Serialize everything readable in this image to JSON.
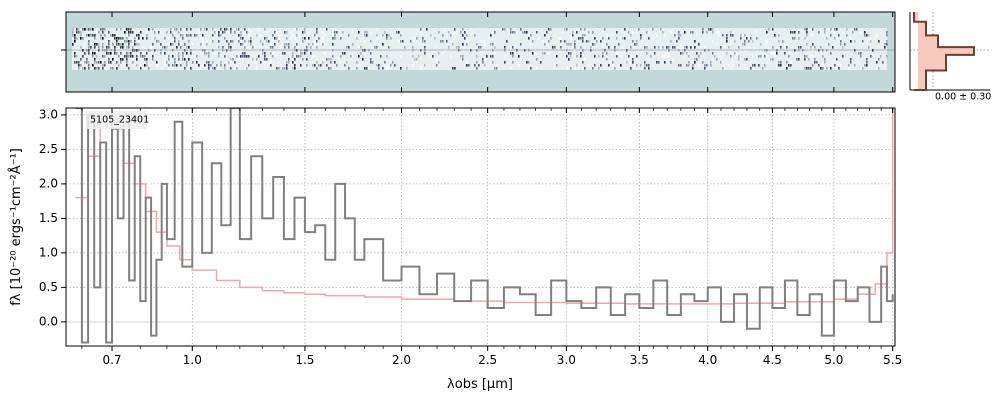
{
  "chart_data": [
    {
      "name": "2d-spectrum",
      "type": "heatmap",
      "colormap": [
        "#c3d9d9",
        "#ffffff",
        "#1b2b4a",
        "#000000"
      ]
    },
    {
      "name": "spatial-profile",
      "type": "line",
      "label": "0.00 ± 0.30",
      "x": [
        -0.05,
        0.1,
        0.25,
        0.7,
        0.35,
        0.1,
        -0.05
      ],
      "y_rows": [
        0,
        5,
        12,
        18,
        22,
        30,
        40
      ],
      "colors": {
        "profile": "#6b3e2e",
        "fill": "#f7c8bc"
      }
    },
    {
      "name": "1d-spectrum",
      "type": "line",
      "title_label": "5105_23401",
      "xlabel": "λobs [μm]",
      "ylabel": "fλ [10⁻²⁰ ergs⁻¹cm⁻²Å⁻¹]",
      "xscale": "power",
      "xlim": [
        0.55,
        5.52
      ],
      "ylim": [
        -0.35,
        3.1
      ],
      "xticks": [
        "0.7",
        "1.0",
        "1.5",
        "2.0",
        "2.5",
        "3.0",
        "3.5",
        "4.0",
        "4.5",
        "5.0",
        "5.5"
      ],
      "xtick_values": [
        0.7,
        1.0,
        1.5,
        2.0,
        2.5,
        3.0,
        3.5,
        4.0,
        4.5,
        5.0,
        5.5
      ],
      "yticks": [
        "0.0",
        "0.5",
        "1.0",
        "1.5",
        "2.0",
        "2.5",
        "3.0"
      ],
      "ytick_values": [
        0.0,
        0.5,
        1.0,
        1.5,
        2.0,
        2.5,
        3.0
      ],
      "grid": true,
      "colors": {
        "flux": "#808080",
        "error": "#f4a6a6",
        "zero": "#d8d8d8"
      },
      "series": [
        {
          "role": "flux",
          "x": [
            0.58,
            0.6,
            0.62,
            0.64,
            0.66,
            0.68,
            0.7,
            0.72,
            0.74,
            0.76,
            0.78,
            0.8,
            0.82,
            0.84,
            0.86,
            0.88,
            0.9,
            0.93,
            0.96,
            1.0,
            1.04,
            1.08,
            1.12,
            1.16,
            1.2,
            1.25,
            1.3,
            1.35,
            1.4,
            1.45,
            1.5,
            1.55,
            1.6,
            1.65,
            1.7,
            1.75,
            1.8,
            1.9,
            2.0,
            2.1,
            2.2,
            2.3,
            2.4,
            2.5,
            2.6,
            2.7,
            2.8,
            2.9,
            3.0,
            3.1,
            3.2,
            3.3,
            3.4,
            3.5,
            3.6,
            3.7,
            3.8,
            3.9,
            4.0,
            4.1,
            4.2,
            4.3,
            4.4,
            4.5,
            4.6,
            4.7,
            4.8,
            4.9,
            5.0,
            5.1,
            5.2,
            5.3,
            5.4,
            5.45,
            5.5
          ],
          "y": [
            3.1,
            -0.3,
            3.0,
            0.5,
            2.6,
            -0.3,
            2.8,
            1.5,
            3.0,
            0.6,
            2.4,
            0.3,
            1.8,
            -0.2,
            0.9,
            2.0,
            1.2,
            2.9,
            0.8,
            2.6,
            1.0,
            2.3,
            1.4,
            3.1,
            1.2,
            2.4,
            1.5,
            2.1,
            1.2,
            1.8,
            1.3,
            1.4,
            0.9,
            2.0,
            1.5,
            0.9,
            1.2,
            0.6,
            0.8,
            0.4,
            0.7,
            0.3,
            0.6,
            0.2,
            0.5,
            0.4,
            0.1,
            0.6,
            0.3,
            0.2,
            0.5,
            0.1,
            0.4,
            0.2,
            0.6,
            0.1,
            0.4,
            0.3,
            0.5,
            0.0,
            0.4,
            -0.1,
            0.5,
            0.2,
            0.6,
            0.1,
            0.4,
            -0.2,
            0.6,
            0.3,
            0.5,
            0.0,
            0.8,
            0.3,
            0.4
          ]
        },
        {
          "role": "error",
          "x": [
            0.58,
            0.62,
            0.66,
            0.7,
            0.74,
            0.78,
            0.82,
            0.86,
            0.9,
            0.95,
            1.0,
            1.1,
            1.2,
            1.3,
            1.4,
            1.5,
            1.6,
            1.8,
            2.0,
            2.3,
            2.6,
            3.0,
            3.4,
            3.8,
            4.2,
            4.6,
            5.0,
            5.2,
            5.35,
            5.45,
            5.5
          ],
          "y": [
            1.8,
            2.4,
            2.9,
            2.8,
            2.3,
            2.0,
            1.6,
            1.3,
            1.1,
            0.9,
            0.75,
            0.6,
            0.5,
            0.45,
            0.42,
            0.4,
            0.38,
            0.36,
            0.33,
            0.3,
            0.28,
            0.27,
            0.26,
            0.26,
            0.27,
            0.29,
            0.33,
            0.4,
            0.55,
            1.0,
            3.1
          ]
        }
      ]
    }
  ]
}
